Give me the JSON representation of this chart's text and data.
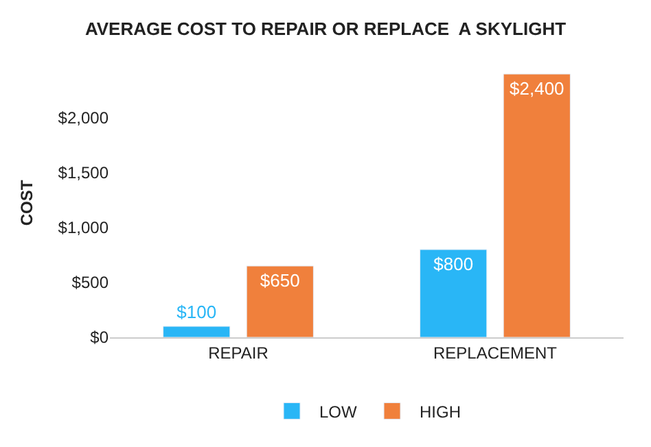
{
  "chart_data": {
    "type": "bar",
    "title": "AVERAGE COST TO REPAIR OR REPLACE  A SKYLIGHT",
    "ylabel": "COST",
    "categories": [
      "REPAIR",
      "REPLACEMENT"
    ],
    "series": [
      {
        "name": "LOW",
        "color": "#29b6f6",
        "values": [
          100,
          800
        ],
        "value_labels": [
          "$100",
          "$800"
        ]
      },
      {
        "name": "HIGH",
        "color": "#f0803c",
        "values": [
          650,
          2400
        ],
        "value_labels": [
          "$650",
          "$2,400"
        ]
      }
    ],
    "ylim": [
      0,
      2450
    ],
    "yticks": [
      {
        "value": 0,
        "label": "$0"
      },
      {
        "value": 500,
        "label": "$500"
      },
      {
        "value": 1000,
        "label": "$1,000"
      },
      {
        "value": 1500,
        "label": "$1,500"
      },
      {
        "value": 2000,
        "label": "$2,000"
      }
    ],
    "legend": "bottom"
  }
}
